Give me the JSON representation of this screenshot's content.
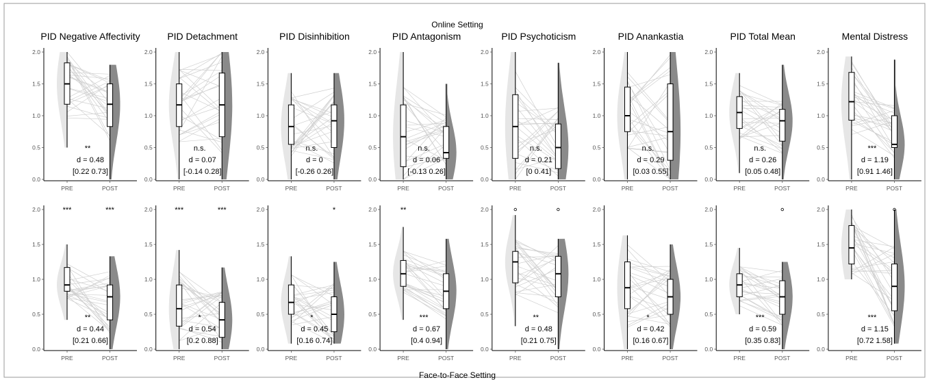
{
  "figure": {
    "top_label": "Online Setting",
    "bottom_label": "Face-to-Face Setting"
  },
  "colors": {
    "pre_violin": "#e6e6e6",
    "post_violin": "#8a8a8a",
    "pair_line": "#cfcfcf",
    "box_fill": "#ffffff",
    "axis": "#000000"
  },
  "chart_data": [
    {
      "type": "violin-paired",
      "setting": "Online Setting",
      "title": "PID Negative Affectivity",
      "categories": [
        "PRE",
        "POST"
      ],
      "ylim": [
        0,
        2
      ],
      "yticks": [
        "0.0",
        "0.5",
        "1.0",
        "1.5",
        "2.0"
      ],
      "pre": {
        "min": 0.5,
        "q1": 1.18,
        "median": 1.5,
        "q3": 1.83,
        "max": 2.0
      },
      "post": {
        "min": 0.0,
        "q1": 0.83,
        "median": 1.18,
        "q3": 1.5,
        "max": 1.8
      },
      "sig_mid": "**",
      "sig_pre": "",
      "sig_post": "",
      "d_text": "d = 0.48",
      "ci_text": "[0.22 0.73]",
      "outlier_pre": null,
      "outlier_post": null
    },
    {
      "type": "violin-paired",
      "setting": "Online Setting",
      "title": "PID Detachment",
      "categories": [
        "PRE",
        "POST"
      ],
      "ylim": [
        0,
        2
      ],
      "yticks": [
        "0.0",
        "0.5",
        "1.0",
        "1.5",
        "2.0"
      ],
      "pre": {
        "min": 0.0,
        "q1": 0.83,
        "median": 1.17,
        "q3": 1.5,
        "max": 2.0
      },
      "post": {
        "min": 0.0,
        "q1": 0.67,
        "median": 1.17,
        "q3": 1.67,
        "max": 2.0
      },
      "sig_mid": "n.s.",
      "sig_pre": "",
      "sig_post": "",
      "d_text": "d = 0.07",
      "ci_text": "[-0.14 0.28]",
      "outlier_pre": null,
      "outlier_post": null
    },
    {
      "type": "violin-paired",
      "setting": "Online Setting",
      "title": "PID Disinhibition",
      "categories": [
        "PRE",
        "POST"
      ],
      "ylim": [
        0,
        2
      ],
      "yticks": [
        "0.0",
        "0.5",
        "1.0",
        "1.5",
        "2.0"
      ],
      "pre": {
        "min": 0.0,
        "q1": 0.55,
        "median": 0.83,
        "q3": 1.17,
        "max": 1.67
      },
      "post": {
        "min": 0.0,
        "q1": 0.5,
        "median": 0.92,
        "q3": 1.17,
        "max": 1.67
      },
      "sig_mid": "n.s.",
      "sig_pre": "",
      "sig_post": "",
      "d_text": "d = 0",
      "ci_text": "[-0.26 0.26]",
      "outlier_pre": null,
      "outlier_post": null
    },
    {
      "type": "violin-paired",
      "setting": "Online Setting",
      "title": "PID Antagonism",
      "categories": [
        "PRE",
        "POST"
      ],
      "ylim": [
        0,
        2
      ],
      "yticks": [
        "0.0",
        "0.5",
        "1.0",
        "1.5",
        "2.0"
      ],
      "pre": {
        "min": 0.0,
        "q1": 0.2,
        "median": 0.67,
        "q3": 1.17,
        "max": 2.0
      },
      "post": {
        "min": 0.0,
        "q1": 0.33,
        "median": 0.42,
        "q3": 0.83,
        "max": 1.5
      },
      "sig_mid": "n.s.",
      "sig_pre": "",
      "sig_post": "",
      "d_text": "d = 0.06",
      "ci_text": "[-0.13 0.26]",
      "outlier_pre": null,
      "outlier_post": null
    },
    {
      "type": "violin-paired",
      "setting": "Online Setting",
      "title": "PID Psychoticism",
      "categories": [
        "PRE",
        "POST"
      ],
      "ylim": [
        0,
        2
      ],
      "yticks": [
        "0.0",
        "0.5",
        "1.0",
        "1.5",
        "2.0"
      ],
      "pre": {
        "min": 0.0,
        "q1": 0.33,
        "median": 0.83,
        "q3": 1.33,
        "max": 2.0
      },
      "post": {
        "min": 0.0,
        "q1": 0.17,
        "median": 0.5,
        "q3": 0.87,
        "max": 1.83
      },
      "sig_mid": "n.s.",
      "sig_pre": "",
      "sig_post": "",
      "d_text": "d = 0.21",
      "ci_text": "[0 0.41]",
      "outlier_pre": null,
      "outlier_post": null
    },
    {
      "type": "violin-paired",
      "setting": "Online Setting",
      "title": "PID Anankastia",
      "categories": [
        "PRE",
        "POST"
      ],
      "ylim": [
        0,
        2
      ],
      "yticks": [
        "0.0",
        "0.5",
        "1.0",
        "1.5",
        "2.0"
      ],
      "pre": {
        "min": 0.0,
        "q1": 0.75,
        "median": 1.0,
        "q3": 1.45,
        "max": 2.0
      },
      "post": {
        "min": 0.0,
        "q1": 0.3,
        "median": 0.75,
        "q3": 1.5,
        "max": 2.0
      },
      "sig_mid": "n.s.",
      "sig_pre": "",
      "sig_post": "",
      "d_text": "d = 0.29",
      "ci_text": "[0.03 0.55]",
      "outlier_pre": null,
      "outlier_post": null
    },
    {
      "type": "violin-paired",
      "setting": "Online Setting",
      "title": "PID Total Mean",
      "categories": [
        "PRE",
        "POST"
      ],
      "ylim": [
        0,
        2
      ],
      "yticks": [
        "0.0",
        "0.5",
        "1.0",
        "1.5",
        "2.0"
      ],
      "pre": {
        "min": 0.1,
        "q1": 0.8,
        "median": 1.05,
        "q3": 1.3,
        "max": 1.67
      },
      "post": {
        "min": 0.0,
        "q1": 0.6,
        "median": 0.92,
        "q3": 1.1,
        "max": 1.8
      },
      "sig_mid": "n.s.",
      "sig_pre": "",
      "sig_post": "",
      "d_text": "d = 0.26",
      "ci_text": "[0.05 0.48]",
      "outlier_pre": null,
      "outlier_post": null
    },
    {
      "type": "violin-paired",
      "setting": "Online Setting",
      "title": "Mental Distress",
      "categories": [
        "PRE",
        "POST"
      ],
      "ylim": [
        0,
        2
      ],
      "yticks": [
        "0.0",
        "0.5",
        "1.0",
        "1.5",
        "2.0"
      ],
      "pre": {
        "min": 0.0,
        "q1": 0.93,
        "median": 1.22,
        "q3": 1.68,
        "max": 1.93
      },
      "post": {
        "min": 0.0,
        "q1": 0.5,
        "median": 0.55,
        "q3": 1.0,
        "max": 1.88
      },
      "sig_mid": "***",
      "sig_pre": "",
      "sig_post": "",
      "d_text": "d = 1.19",
      "ci_text": "[0.91 1.46]",
      "outlier_pre": null,
      "outlier_post": null
    },
    {
      "type": "violin-paired",
      "setting": "Face-to-Face Setting",
      "title": "",
      "categories": [
        "PRE",
        "POST"
      ],
      "ylim": [
        0,
        2
      ],
      "yticks": [
        "0.0",
        "0.5",
        "1.0",
        "1.5",
        "2.0"
      ],
      "pre": {
        "min": 0.42,
        "q1": 0.83,
        "median": 0.92,
        "q3": 1.17,
        "max": 1.5
      },
      "post": {
        "min": 0.0,
        "q1": 0.42,
        "median": 0.75,
        "q3": 0.92,
        "max": 1.33
      },
      "sig_mid": "**",
      "sig_pre": "***",
      "sig_post": "***",
      "d_text": "d = 0.44",
      "ci_text": "[0.21 0.66]",
      "outlier_pre": null,
      "outlier_post": null
    },
    {
      "type": "violin-paired",
      "setting": "Face-to-Face Setting",
      "title": "",
      "categories": [
        "PRE",
        "POST"
      ],
      "ylim": [
        0,
        2
      ],
      "yticks": [
        "0.0",
        "0.5",
        "1.0",
        "1.5",
        "2.0"
      ],
      "pre": {
        "min": 0.0,
        "q1": 0.33,
        "median": 0.58,
        "q3": 0.92,
        "max": 1.42
      },
      "post": {
        "min": 0.0,
        "q1": 0.17,
        "median": 0.42,
        "q3": 0.67,
        "max": 1.17
      },
      "sig_mid": "*",
      "sig_pre": "***",
      "sig_post": "***",
      "d_text": "d = 0.54",
      "ci_text": "[0.2 0.88]",
      "outlier_pre": null,
      "outlier_post": null
    },
    {
      "type": "violin-paired",
      "setting": "Face-to-Face Setting",
      "title": "",
      "categories": [
        "PRE",
        "POST"
      ],
      "ylim": [
        0,
        2
      ],
      "yticks": [
        "0.0",
        "0.5",
        "1.0",
        "1.5",
        "2.0"
      ],
      "pre": {
        "min": 0.08,
        "q1": 0.5,
        "median": 0.67,
        "q3": 0.92,
        "max": 1.33
      },
      "post": {
        "min": 0.08,
        "q1": 0.25,
        "median": 0.5,
        "q3": 0.75,
        "max": 1.25
      },
      "sig_mid": "*",
      "sig_pre": "",
      "sig_post": "*",
      "d_text": "d = 0.45",
      "ci_text": "[0.16 0.74]",
      "outlier_pre": null,
      "outlier_post": null
    },
    {
      "type": "violin-paired",
      "setting": "Face-to-Face Setting",
      "title": "",
      "categories": [
        "PRE",
        "POST"
      ],
      "ylim": [
        0,
        2
      ],
      "yticks": [
        "0.0",
        "0.5",
        "1.0",
        "1.5",
        "2.0"
      ],
      "pre": {
        "min": 0.42,
        "q1": 0.9,
        "median": 1.08,
        "q3": 1.27,
        "max": 1.75
      },
      "post": {
        "min": 0.0,
        "q1": 0.58,
        "median": 0.83,
        "q3": 1.08,
        "max": 1.58
      },
      "sig_mid": "***",
      "sig_pre": "**",
      "sig_post": "",
      "d_text": "d = 0.67",
      "ci_text": "[0.4 0.94]",
      "outlier_pre": null,
      "outlier_post": null
    },
    {
      "type": "violin-paired",
      "setting": "Face-to-Face Setting",
      "title": "",
      "categories": [
        "PRE",
        "POST"
      ],
      "ylim": [
        0,
        2
      ],
      "yticks": [
        "0.0",
        "0.5",
        "1.0",
        "1.5",
        "2.0"
      ],
      "pre": {
        "min": 0.33,
        "q1": 0.95,
        "median": 1.25,
        "q3": 1.4,
        "max": 1.92
      },
      "post": {
        "min": 0.0,
        "q1": 0.75,
        "median": 1.08,
        "q3": 1.33,
        "max": 1.58
      },
      "sig_mid": "**",
      "sig_pre": "",
      "sig_post": "",
      "d_text": "d = 0.48",
      "ci_text": "[0.21 0.75]",
      "outlier_pre": 2.0,
      "outlier_post": 2.0
    },
    {
      "type": "violin-paired",
      "setting": "Face-to-Face Setting",
      "title": "",
      "categories": [
        "PRE",
        "POST"
      ],
      "ylim": [
        0,
        2
      ],
      "yticks": [
        "0.0",
        "0.5",
        "1.0",
        "1.5",
        "2.0"
      ],
      "pre": {
        "min": 0.0,
        "q1": 0.58,
        "median": 0.88,
        "q3": 1.25,
        "max": 1.63
      },
      "post": {
        "min": 0.0,
        "q1": 0.5,
        "median": 0.75,
        "q3": 1.0,
        "max": 1.5
      },
      "sig_mid": "*",
      "sig_pre": "",
      "sig_post": "",
      "d_text": "d = 0.42",
      "ci_text": "[0.16 0.67]",
      "outlier_pre": null,
      "outlier_post": null
    },
    {
      "type": "violin-paired",
      "setting": "Face-to-Face Setting",
      "title": "",
      "categories": [
        "PRE",
        "POST"
      ],
      "ylim": [
        0,
        2
      ],
      "yticks": [
        "0.0",
        "0.5",
        "1.0",
        "1.5",
        "2.0"
      ],
      "pre": {
        "min": 0.5,
        "q1": 0.75,
        "median": 0.92,
        "q3": 1.08,
        "max": 1.45
      },
      "post": {
        "min": 0.0,
        "q1": 0.5,
        "median": 0.75,
        "q3": 0.98,
        "max": 1.25
      },
      "sig_mid": "***",
      "sig_pre": "",
      "sig_post": "",
      "d_text": "d = 0.59",
      "ci_text": "[0.35 0.83]",
      "outlier_pre": null,
      "outlier_post": 2.0
    },
    {
      "type": "violin-paired",
      "setting": "Face-to-Face Setting",
      "title": "",
      "categories": [
        "PRE",
        "POST"
      ],
      "ylim": [
        0,
        2
      ],
      "yticks": [
        "0.0",
        "0.5",
        "1.0",
        "1.5",
        "2.0"
      ],
      "pre": {
        "min": 1.0,
        "q1": 1.22,
        "median": 1.45,
        "q3": 1.77,
        "max": 2.0
      },
      "post": {
        "min": 0.08,
        "q1": 0.55,
        "median": 0.9,
        "q3": 1.22,
        "max": 2.0
      },
      "sig_mid": "***",
      "sig_pre": "",
      "sig_post": "",
      "d_text": "d = 1.15",
      "ci_text": "[0.72 1.58]",
      "outlier_pre": null,
      "outlier_post": 2.0
    }
  ]
}
